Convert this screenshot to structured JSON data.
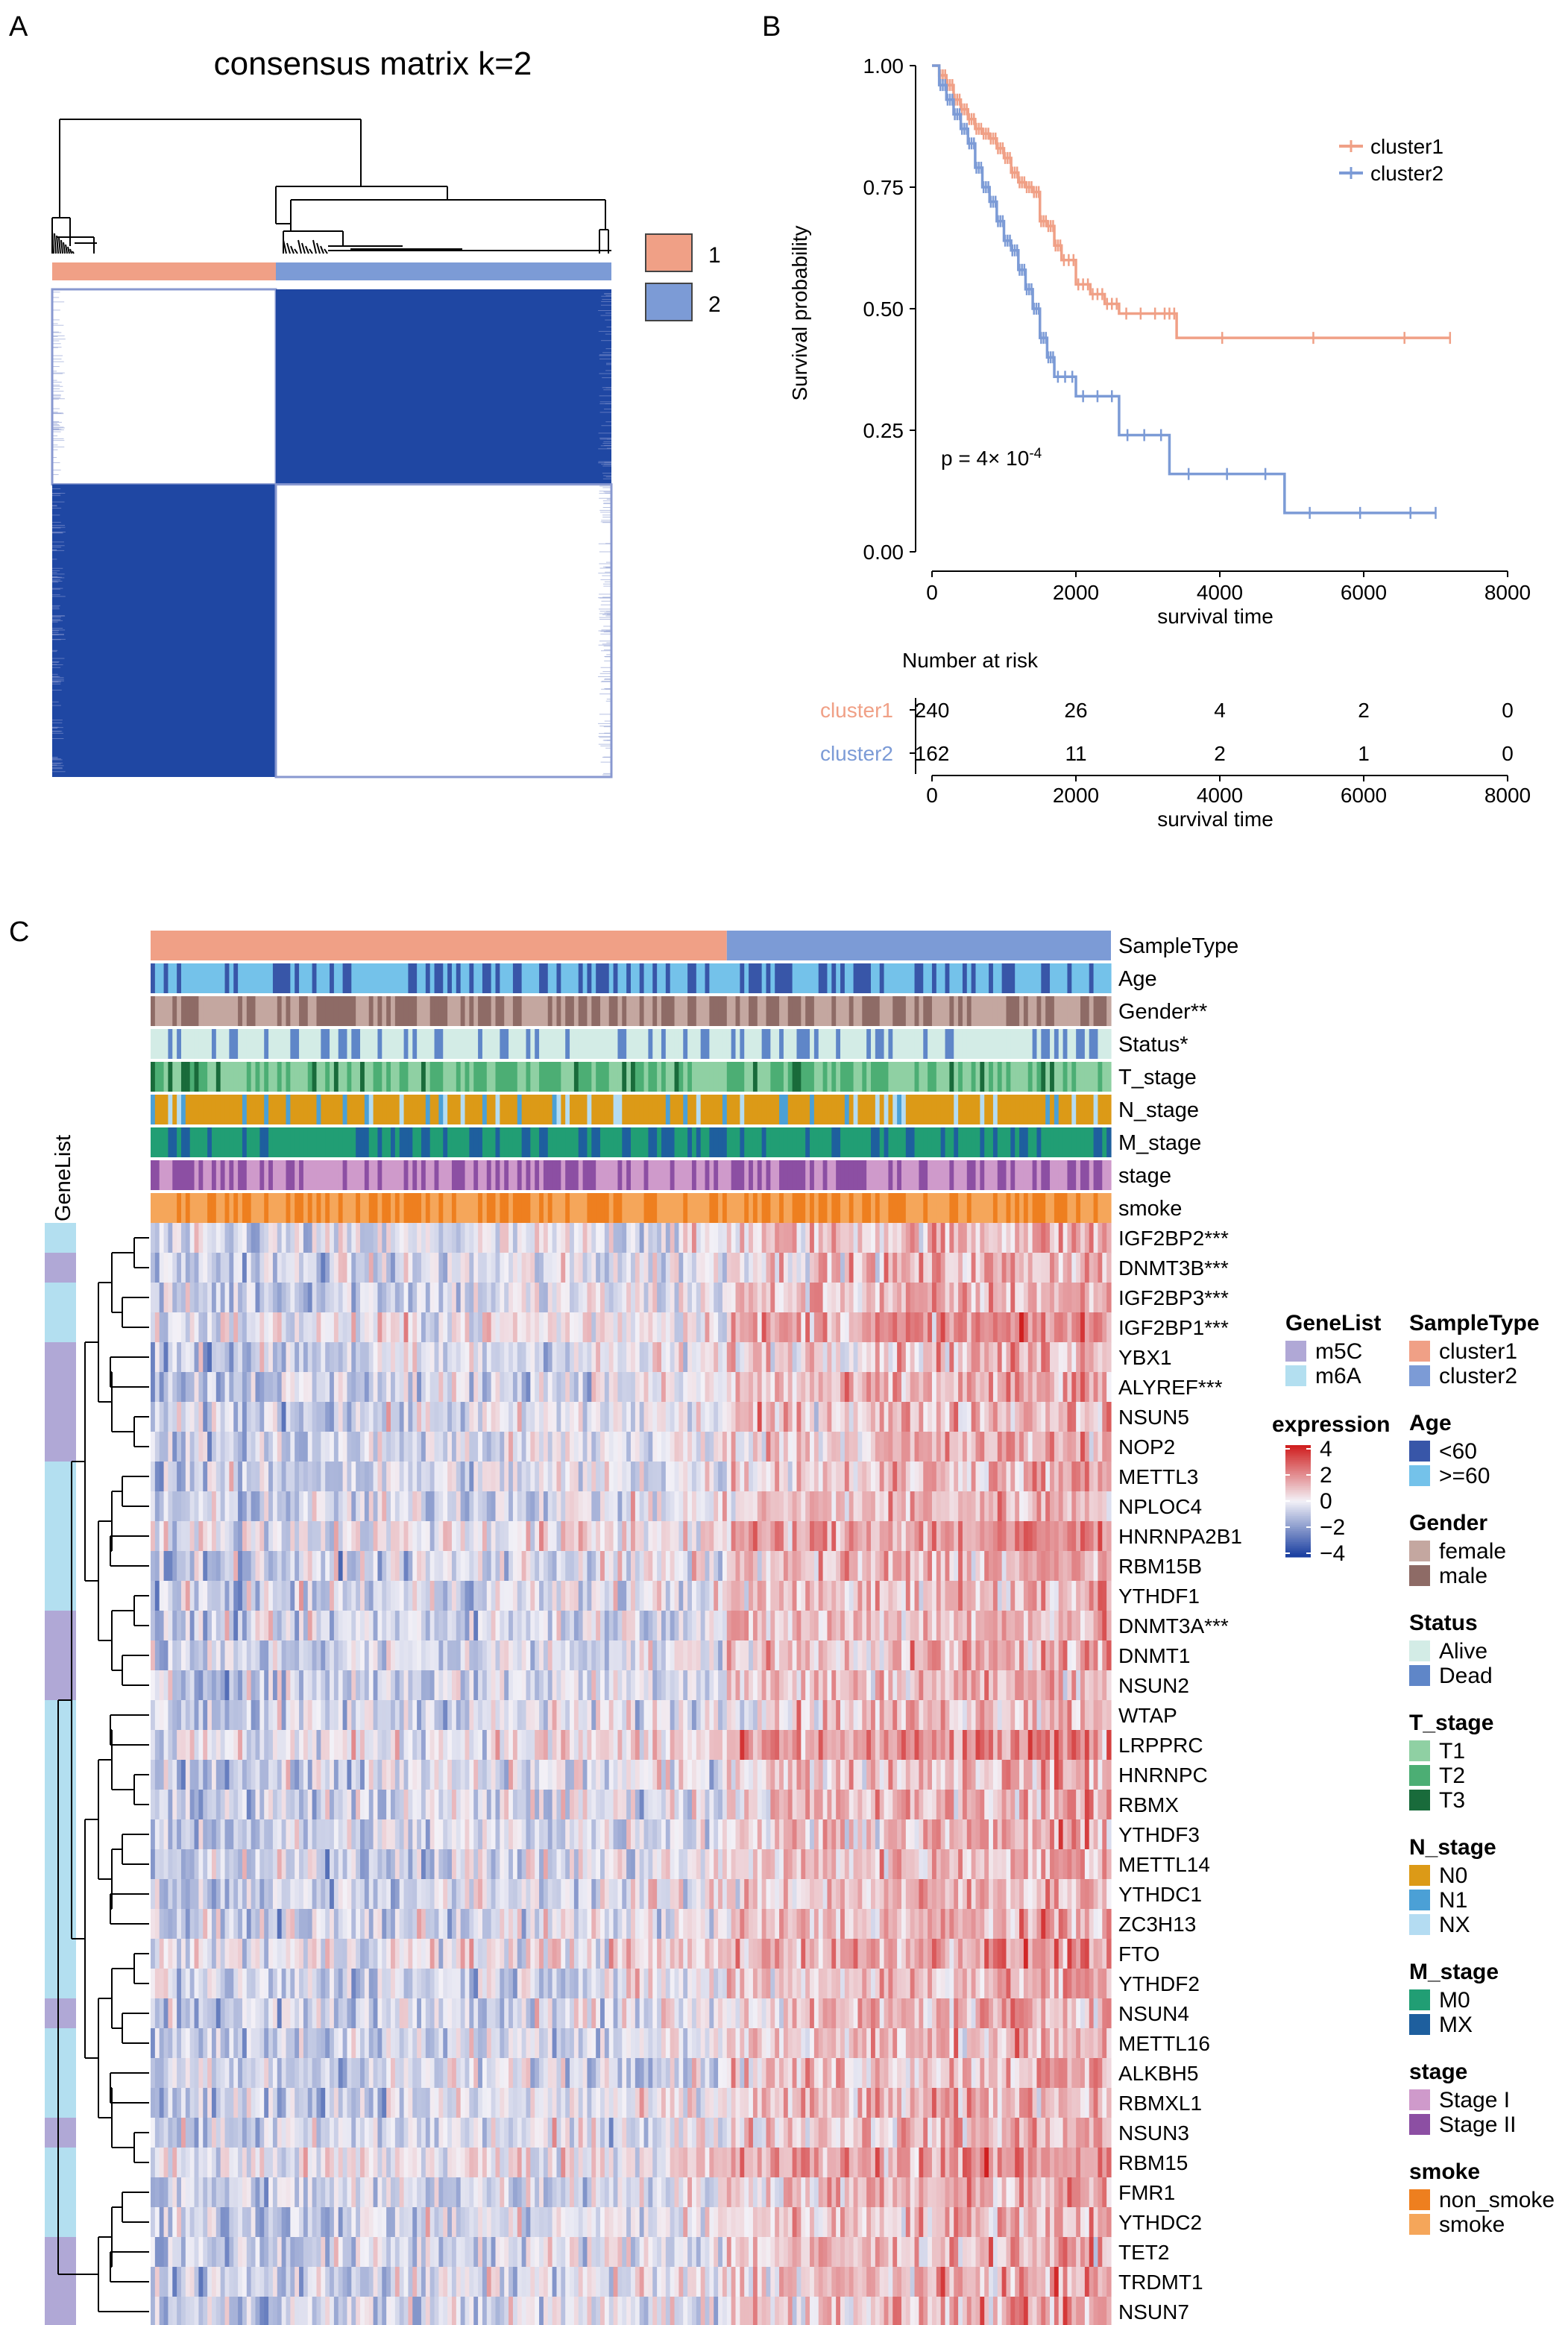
{
  "panels": {
    "a": "A",
    "b": "B",
    "c": "C"
  },
  "colors": {
    "cluster1": "#f0a086",
    "cluster2": "#7c9bd6",
    "consensus_fill": "#1f47a3",
    "consensus_edge": "#8898d0",
    "heat_low": "#1a3fa0",
    "heat_mid": "#f3f1f7",
    "heat_high": "#d01f1f"
  },
  "chart_data": [
    {
      "type": "heatmap",
      "panel": "A",
      "title": "consensus matrix k=2",
      "groups": [
        "1",
        "2"
      ],
      "group_proportions": [
        0.4,
        0.6
      ],
      "blocks": [
        {
          "row_group": "1",
          "col_group": "1",
          "consensus": 0
        },
        {
          "row_group": "1",
          "col_group": "2",
          "consensus": 1
        },
        {
          "row_group": "2",
          "col_group": "1",
          "consensus": 1
        },
        {
          "row_group": "2",
          "col_group": "2",
          "consensus": 0
        }
      ],
      "legend": [
        "1",
        "2"
      ]
    },
    {
      "type": "line",
      "panel": "B",
      "xlabel": "survival time",
      "ylabel": "Survival probability",
      "xlim": [
        0,
        8000
      ],
      "ylim": [
        0,
        1
      ],
      "xticks": [
        "0",
        "2000",
        "4000",
        "6000",
        "8000"
      ],
      "yticks": [
        "0.00",
        "0.25",
        "0.50",
        "0.75",
        "1.00"
      ],
      "pvalue_prefix": "p = 4× 10",
      "pvalue_exp": "-4",
      "series": [
        {
          "name": "cluster1",
          "x": [
            0,
            100,
            200,
            300,
            400,
            500,
            600,
            700,
            800,
            900,
            1000,
            1100,
            1200,
            1300,
            1400,
            1500,
            1600,
            1700,
            1800,
            2000,
            2200,
            2400,
            2600,
            3200,
            3400,
            7200
          ],
          "y": [
            1.0,
            0.98,
            0.96,
            0.93,
            0.91,
            0.89,
            0.87,
            0.86,
            0.85,
            0.83,
            0.81,
            0.78,
            0.76,
            0.75,
            0.74,
            0.68,
            0.67,
            0.63,
            0.6,
            0.55,
            0.53,
            0.51,
            0.49,
            0.49,
            0.44,
            0.44
          ]
        },
        {
          "name": "cluster2",
          "x": [
            0,
            100,
            200,
            300,
            400,
            500,
            600,
            700,
            800,
            900,
            1000,
            1100,
            1200,
            1300,
            1400,
            1500,
            1600,
            1700,
            2000,
            2600,
            3300,
            4900,
            7000
          ],
          "y": [
            1.0,
            0.96,
            0.93,
            0.9,
            0.87,
            0.84,
            0.79,
            0.75,
            0.72,
            0.68,
            0.64,
            0.62,
            0.58,
            0.54,
            0.5,
            0.44,
            0.4,
            0.36,
            0.32,
            0.24,
            0.16,
            0.08,
            0.08
          ]
        }
      ],
      "legend": [
        "cluster1",
        "cluster2"
      ]
    },
    {
      "type": "table",
      "panel": "B",
      "title": "Number at risk",
      "xlabel": "survival time",
      "xticks": [
        "0",
        "2000",
        "4000",
        "6000",
        "8000"
      ],
      "rows": [
        {
          "name": "cluster1",
          "values": [
            "240",
            "26",
            "4",
            "2",
            "0"
          ]
        },
        {
          "name": "cluster2",
          "values": [
            "162",
            "11",
            "2",
            "1",
            "0"
          ]
        }
      ]
    },
    {
      "type": "heatmap",
      "panel": "C",
      "annotation_tracks": [
        "SampleType",
        "Age",
        "Gender**",
        "Status*",
        "T_stage",
        "N_stage",
        "M_stage",
        "stage",
        "smoke"
      ],
      "genelist_label": "GeneList",
      "genes": [
        {
          "name": "IGF2BP2***",
          "list": "m6A"
        },
        {
          "name": "DNMT3B***",
          "list": "m5C"
        },
        {
          "name": "IGF2BP3***",
          "list": "m6A"
        },
        {
          "name": "IGF2BP1***",
          "list": "m6A"
        },
        {
          "name": "YBX1",
          "list": "m5C"
        },
        {
          "name": "ALYREF***",
          "list": "m5C"
        },
        {
          "name": "NSUN5",
          "list": "m5C"
        },
        {
          "name": "NOP2",
          "list": "m5C"
        },
        {
          "name": "METTL3",
          "list": "m6A"
        },
        {
          "name": "NPLOC4",
          "list": "m6A"
        },
        {
          "name": "HNRNPA2B1",
          "list": "m6A"
        },
        {
          "name": "RBM15B",
          "list": "m6A"
        },
        {
          "name": "YTHDF1",
          "list": "m6A"
        },
        {
          "name": "DNMT3A***",
          "list": "m5C"
        },
        {
          "name": "DNMT1",
          "list": "m5C"
        },
        {
          "name": "NSUN2",
          "list": "m5C"
        },
        {
          "name": "WTAP",
          "list": "m6A"
        },
        {
          "name": "LRPPRC",
          "list": "m6A"
        },
        {
          "name": "HNRNPC",
          "list": "m6A"
        },
        {
          "name": "RBMX",
          "list": "m6A"
        },
        {
          "name": "YTHDF3",
          "list": "m6A"
        },
        {
          "name": "METTL14",
          "list": "m6A"
        },
        {
          "name": "YTHDC1",
          "list": "m6A"
        },
        {
          "name": "ZC3H13",
          "list": "m6A"
        },
        {
          "name": "FTO",
          "list": "m6A"
        },
        {
          "name": "YTHDF2",
          "list": "m6A"
        },
        {
          "name": "NSUN4",
          "list": "m5C"
        },
        {
          "name": "METTL16",
          "list": "m6A"
        },
        {
          "name": "ALKBH5",
          "list": "m6A"
        },
        {
          "name": "RBMXL1",
          "list": "m6A"
        },
        {
          "name": "NSUN3",
          "list": "m5C"
        },
        {
          "name": "RBM15",
          "list": "m6A"
        },
        {
          "name": "FMR1",
          "list": "m6A"
        },
        {
          "name": "YTHDC2",
          "list": "m6A"
        },
        {
          "name": "TET2",
          "list": "m5C"
        },
        {
          "name": "TRDMT1",
          "list": "m5C"
        },
        {
          "name": "NSUN7",
          "list": "m5C"
        }
      ],
      "sample_groups": [
        {
          "name": "cluster1",
          "proportion": 0.6
        },
        {
          "name": "cluster2",
          "proportion": 0.4
        }
      ],
      "expression_range": [
        -4,
        4
      ],
      "legends": [
        {
          "title": "GeneList",
          "items": [
            {
              "label": "m5C",
              "color": "#b0a8d6"
            },
            {
              "label": "m6A",
              "color": "#b3dff0"
            }
          ]
        },
        {
          "title": "expression",
          "ticks": [
            "4",
            "2",
            "0",
            "−2",
            "−4"
          ]
        },
        {
          "title": "SampleType",
          "items": [
            {
              "label": "cluster1",
              "color": "#f0a086"
            },
            {
              "label": "cluster2",
              "color": "#7c9bd6"
            }
          ]
        },
        {
          "title": "Age",
          "items": [
            {
              "label": "<60",
              "color": "#3856a8"
            },
            {
              "label": ">=60",
              "color": "#74c2ea"
            }
          ]
        },
        {
          "title": "Gender",
          "items": [
            {
              "label": "female",
              "color": "#c4a7a0"
            },
            {
              "label": "male",
              "color": "#8e6b66"
            }
          ]
        },
        {
          "title": "Status",
          "items": [
            {
              "label": "Alive",
              "color": "#d3ece6"
            },
            {
              "label": "Dead",
              "color": "#5f86c8"
            }
          ]
        },
        {
          "title": "T_stage",
          "items": [
            {
              "label": "T1",
              "color": "#8fd0a3"
            },
            {
              "label": "T2",
              "color": "#4cae74"
            },
            {
              "label": "T3",
              "color": "#196b3b"
            }
          ]
        },
        {
          "title": "N_stage",
          "items": [
            {
              "label": "N0",
              "color": "#dc9a17"
            },
            {
              "label": "N1",
              "color": "#4ba0d6"
            },
            {
              "label": "NX",
              "color": "#b4dcf2"
            }
          ]
        },
        {
          "title": "M_stage",
          "items": [
            {
              "label": "M0",
              "color": "#219e74"
            },
            {
              "label": "MX",
              "color": "#1e5f9e"
            }
          ]
        },
        {
          "title": "stage",
          "items": [
            {
              "label": "Stage I",
              "color": "#cf9acb"
            },
            {
              "label": "Stage II",
              "color": "#8c4fa3"
            }
          ]
        },
        {
          "title": "smoke",
          "items": [
            {
              "label": "non_smoke",
              "color": "#ee7f1f"
            },
            {
              "label": "smoke",
              "color": "#f5a65a"
            }
          ]
        }
      ]
    }
  ]
}
